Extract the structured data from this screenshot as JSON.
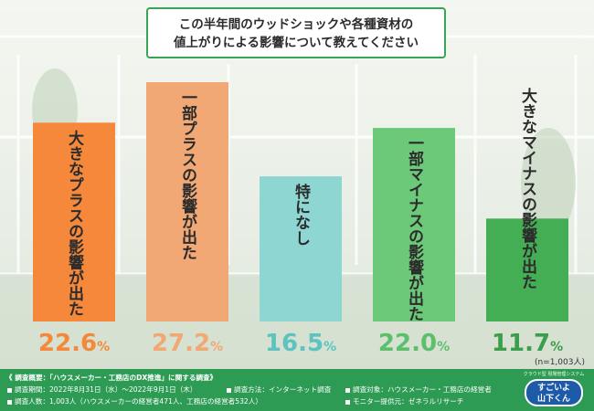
{
  "title_lines": [
    "この半年間のウッドショックや各種資材の",
    "値上がりによる影響について教えてください"
  ],
  "colors": {
    "accent": "#3aa35a",
    "footer": "#2e9b55"
  },
  "chart_data": {
    "type": "bar",
    "categories": [
      "大きなプラスの影響が出た",
      "一部プラスの影響が出た",
      "特になし",
      "一部マイナスの影響が出た",
      "大きなマイナスの影響が出た"
    ],
    "values": [
      22.6,
      27.2,
      16.5,
      22.0,
      11.7
    ],
    "value_labels": [
      {
        "num": "22.6",
        "unit": "%"
      },
      {
        "num": "27.2",
        "unit": "%"
      },
      {
        "num": "16.5",
        "unit": "%"
      },
      {
        "num": "22.0",
        "unit": "%"
      },
      {
        "num": "11.7",
        "unit": "%"
      }
    ],
    "colors": [
      "#f5883a",
      "#f2a875",
      "#8dd6d2",
      "#6cc97a",
      "#44ae55"
    ],
    "label_colors": [
      "#f5883a",
      "#f2a875",
      "#5cc3c0",
      "#5cbf6c",
      "#3a9e4b"
    ],
    "ylim": [
      0,
      27.2
    ],
    "xlabel": "",
    "ylabel": ""
  },
  "n_note": "(n=1,003人)",
  "footer": {
    "survey_summary": "《 調査概要：「ハウスメーカー・工務店のDX推進」に関する調査》",
    "period": "調査期間：2022年8月31日（水）〜2022年9月1日（木）",
    "method": "調査方法：インターネット調査",
    "target": "調査対象：ハウスメーカー・工務店の経営者",
    "count": "調査人数：1,003人（ハウスメーカーの経営者471人、工務店の経営者532人）",
    "monitor": "モニター提供元：ゼネラルリサーチ"
  },
  "logo": {
    "caption": "クラウド型 現場管理システム",
    "line1": "すごいよ",
    "line2": "山下くん"
  }
}
